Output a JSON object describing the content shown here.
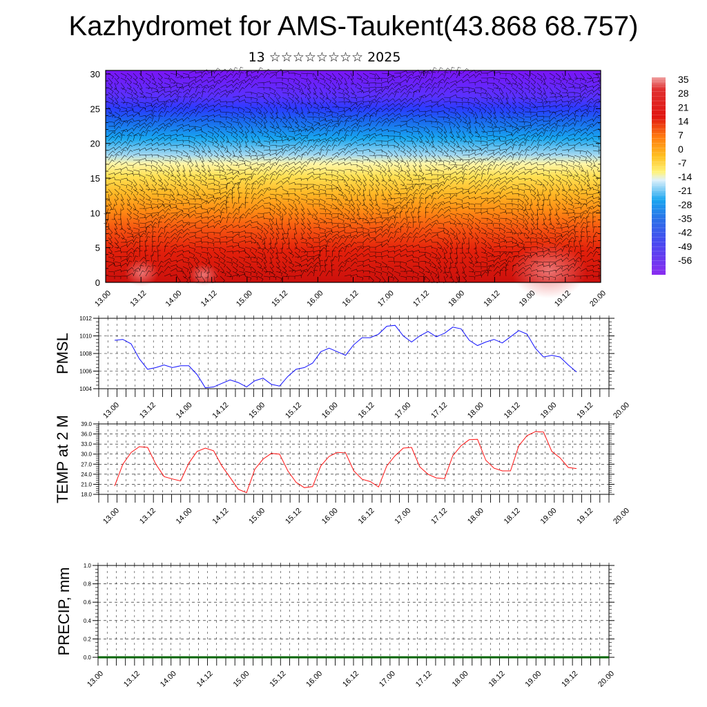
{
  "title": "Kazhydromet for AMS-Taukent(43.868 68.757)",
  "subtitle": "13 ☆☆☆☆☆☆☆☆ 2025",
  "chart_data": [
    {
      "type": "heatmap",
      "name": "cross-section",
      "x_tick_labels": [
        "13.00",
        "13.12",
        "14.00",
        "14.12",
        "15.00",
        "15.12",
        "16.00",
        "16.12",
        "17.00",
        "17.12",
        "18.00",
        "18.12",
        "19.00",
        "19.12",
        "20.00"
      ],
      "y_tick_labels": [
        "0",
        "5",
        "10",
        "15",
        "20",
        "25",
        "30"
      ],
      "ylim": [
        0,
        30.5
      ],
      "colorbar_labels": [
        "35",
        "28",
        "21",
        "14",
        "7",
        "0",
        "-7",
        "-14",
        "-21",
        "-28",
        "-35",
        "-42",
        "-49",
        "-56"
      ],
      "colorbar_range": [
        -60,
        38
      ],
      "overlay": "wind barbs"
    },
    {
      "type": "line",
      "name": "pmsl",
      "ylabel": "PMSL",
      "ylim": [
        1004,
        1012
      ],
      "y_tick_labels": [
        "1004",
        "1006",
        "1008",
        "1010",
        "1012"
      ],
      "x_tick_labels": [
        "13.00",
        "13.12",
        "14.00",
        "14.12",
        "15.00",
        "15.12",
        "16.00",
        "16.12",
        "17.00",
        "17.12",
        "18.00",
        "18.12",
        "19.00",
        "19.12",
        "20.00"
      ],
      "color": "#1010ff",
      "values": [
        1009.5,
        1009.6,
        1009.1,
        1007.4,
        1006.2,
        1006.4,
        1006.7,
        1006.4,
        1006.6,
        1006.6,
        1005.6,
        1004.1,
        1004.2,
        1004.6,
        1005.0,
        1004.7,
        1004.2,
        1004.9,
        1005.2,
        1004.5,
        1004.3,
        1005.4,
        1006.2,
        1006.4,
        1006.9,
        1008.2,
        1008.6,
        1008.2,
        1007.8,
        1009.0,
        1009.8,
        1009.8,
        1010.2,
        1011.1,
        1011.2,
        1010.0,
        1009.3,
        1010.0,
        1010.5,
        1009.9,
        1010.3,
        1011.0,
        1010.8,
        1009.5,
        1008.9,
        1009.3,
        1009.6,
        1009.2,
        1009.9,
        1010.6,
        1010.2,
        1008.6,
        1007.6,
        1007.8,
        1007.6,
        1006.7,
        1005.9
      ]
    },
    {
      "type": "line",
      "name": "temp2m",
      "ylabel": "TEMP at 2 M",
      "ylim": [
        18.0,
        39.0
      ],
      "y_tick_labels": [
        "18.0",
        "21.0",
        "24.0",
        "27.0",
        "30.0",
        "33.0",
        "36.0",
        "39.0"
      ],
      "x_tick_labels": [
        "13.00",
        "13.12",
        "14.00",
        "14.12",
        "15.00",
        "15.12",
        "16.00",
        "16.12",
        "17.00",
        "17.12",
        "18.00",
        "18.12",
        "19.00",
        "19.12",
        "20.00"
      ],
      "color": "#ff1010",
      "values": [
        20.5,
        27.0,
        30.5,
        32.2,
        32.0,
        27.0,
        23.3,
        22.6,
        22.0,
        27.3,
        30.8,
        31.8,
        31.0,
        26.5,
        23.0,
        19.5,
        18.5,
        25.5,
        28.5,
        30.2,
        30.0,
        25.0,
        21.6,
        20.0,
        20.3,
        26.5,
        29.3,
        30.5,
        30.4,
        25.0,
        22.5,
        21.8,
        20.2,
        26.5,
        29.5,
        31.8,
        32.0,
        26.2,
        24.0,
        22.9,
        22.7,
        29.5,
        32.5,
        34.3,
        34.4,
        28.2,
        25.8,
        25.0,
        25.0,
        32.5,
        35.5,
        36.7,
        36.6,
        30.8,
        28.9,
        26.0,
        25.7
      ]
    },
    {
      "type": "line",
      "name": "precip",
      "ylabel": "PRECIP, mm",
      "ylim": [
        0.0,
        1.0
      ],
      "y_tick_labels": [
        "0.0",
        "0.2",
        "0.4",
        "0.6",
        "0.8",
        "1.0"
      ],
      "x_tick_labels": [
        "13.00",
        "13.12",
        "14.00",
        "14.12",
        "15.00",
        "15.12",
        "16.00",
        "16.12",
        "17.00",
        "17.12",
        "18.00",
        "18.12",
        "19.00",
        "19.12",
        "20.00"
      ],
      "color": "#006400",
      "values": [
        0,
        0,
        0,
        0,
        0,
        0,
        0,
        0,
        0,
        0,
        0,
        0,
        0,
        0,
        0,
        0,
        0,
        0,
        0,
        0,
        0,
        0,
        0,
        0,
        0,
        0,
        0,
        0,
        0,
        0,
        0,
        0,
        0,
        0,
        0,
        0,
        0,
        0,
        0,
        0,
        0,
        0,
        0,
        0,
        0,
        0,
        0,
        0,
        0,
        0,
        0,
        0,
        0,
        0,
        0,
        0,
        0
      ]
    }
  ],
  "colors": {
    "heat_stops": [
      "#7f10f5",
      "#4a4aff",
      "#2060f0",
      "#1aa0f0",
      "#9fd6f0",
      "#e6f4fb",
      "#fff57a",
      "#ffd23a",
      "#ffa41a",
      "#ff7410",
      "#f0400d",
      "#e01209",
      "#c40d0d",
      "#e87070"
    ]
  }
}
